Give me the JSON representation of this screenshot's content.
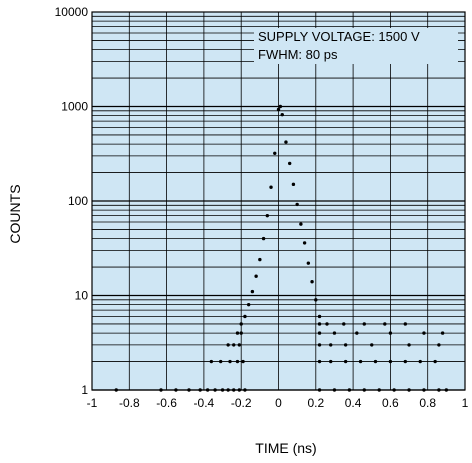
{
  "chart_data": {
    "type": "scatter",
    "xlabel": "TIME (ns)",
    "ylabel": "COUNTS",
    "xlim": [
      -1,
      1
    ],
    "ylim": [
      1,
      10000
    ],
    "yscale": "log",
    "grid": true,
    "x_ticks": [
      "-1",
      "-0.8",
      "-0.6",
      "-0.4",
      "-0.2",
      "0",
      "0.2",
      "0.4",
      "0.6",
      "0.8",
      "1"
    ],
    "y_ticks": [
      "1",
      "10",
      "100",
      "1000",
      "10000"
    ],
    "annotations": [
      "SUPPLY VOLTAGE: 1500 V",
      "FWHM: 80 ps"
    ],
    "colors": {
      "plot_background": "#cfe6f4",
      "points": "#000000",
      "grid": "#000000"
    },
    "series": [
      {
        "points": [
          [
            -0.87,
            1
          ],
          [
            -0.63,
            1
          ],
          [
            -0.55,
            1
          ],
          [
            -0.48,
            1
          ],
          [
            -0.42,
            1
          ],
          [
            -0.38,
            1
          ],
          [
            -0.34,
            1
          ],
          [
            -0.3,
            1
          ],
          [
            -0.27,
            1
          ],
          [
            -0.24,
            1
          ],
          [
            -0.21,
            1
          ],
          [
            -0.18,
            1
          ],
          [
            -0.36,
            2
          ],
          [
            -0.31,
            2
          ],
          [
            -0.26,
            2
          ],
          [
            -0.22,
            2
          ],
          [
            -0.19,
            2
          ],
          [
            -0.27,
            3
          ],
          [
            -0.24,
            3
          ],
          [
            -0.21,
            3
          ],
          [
            -0.22,
            4
          ],
          [
            -0.2,
            4
          ],
          [
            -0.2,
            5
          ],
          [
            -0.18,
            6
          ],
          [
            -0.16,
            8
          ],
          [
            -0.14,
            11
          ],
          [
            -0.12,
            16
          ],
          [
            -0.1,
            24
          ],
          [
            -0.08,
            40
          ],
          [
            -0.06,
            70
          ],
          [
            -0.04,
            140
          ],
          [
            -0.02,
            320
          ],
          [
            0.0,
            930
          ],
          [
            0.01,
            1000
          ],
          [
            0.02,
            820
          ],
          [
            0.04,
            420
          ],
          [
            0.06,
            250
          ],
          [
            0.08,
            150
          ],
          [
            0.1,
            92
          ],
          [
            0.12,
            57
          ],
          [
            0.14,
            36
          ],
          [
            0.16,
            22
          ],
          [
            0.18,
            14
          ],
          [
            0.2,
            9
          ],
          [
            0.22,
            6
          ],
          [
            0.22,
            5
          ],
          [
            0.26,
            5
          ],
          [
            0.35,
            5
          ],
          [
            0.46,
            5
          ],
          [
            0.57,
            5
          ],
          [
            0.68,
            5
          ],
          [
            0.22,
            4
          ],
          [
            0.3,
            4
          ],
          [
            0.42,
            4
          ],
          [
            0.6,
            4
          ],
          [
            0.78,
            4
          ],
          [
            0.88,
            4
          ],
          [
            0.22,
            3
          ],
          [
            0.28,
            3
          ],
          [
            0.36,
            3
          ],
          [
            0.5,
            3
          ],
          [
            0.7,
            3
          ],
          [
            0.86,
            3
          ],
          [
            0.22,
            2
          ],
          [
            0.28,
            2
          ],
          [
            0.36,
            2
          ],
          [
            0.44,
            2
          ],
          [
            0.52,
            2
          ],
          [
            0.6,
            2
          ],
          [
            0.68,
            2
          ],
          [
            0.76,
            2
          ],
          [
            0.84,
            2
          ],
          [
            0.22,
            1
          ],
          [
            0.3,
            1
          ],
          [
            0.38,
            1
          ],
          [
            0.46,
            1
          ],
          [
            0.54,
            1
          ],
          [
            0.62,
            1
          ],
          [
            0.7,
            1
          ],
          [
            0.78,
            1
          ],
          [
            0.86,
            1
          ],
          [
            0.9,
            1
          ]
        ]
      }
    ]
  }
}
